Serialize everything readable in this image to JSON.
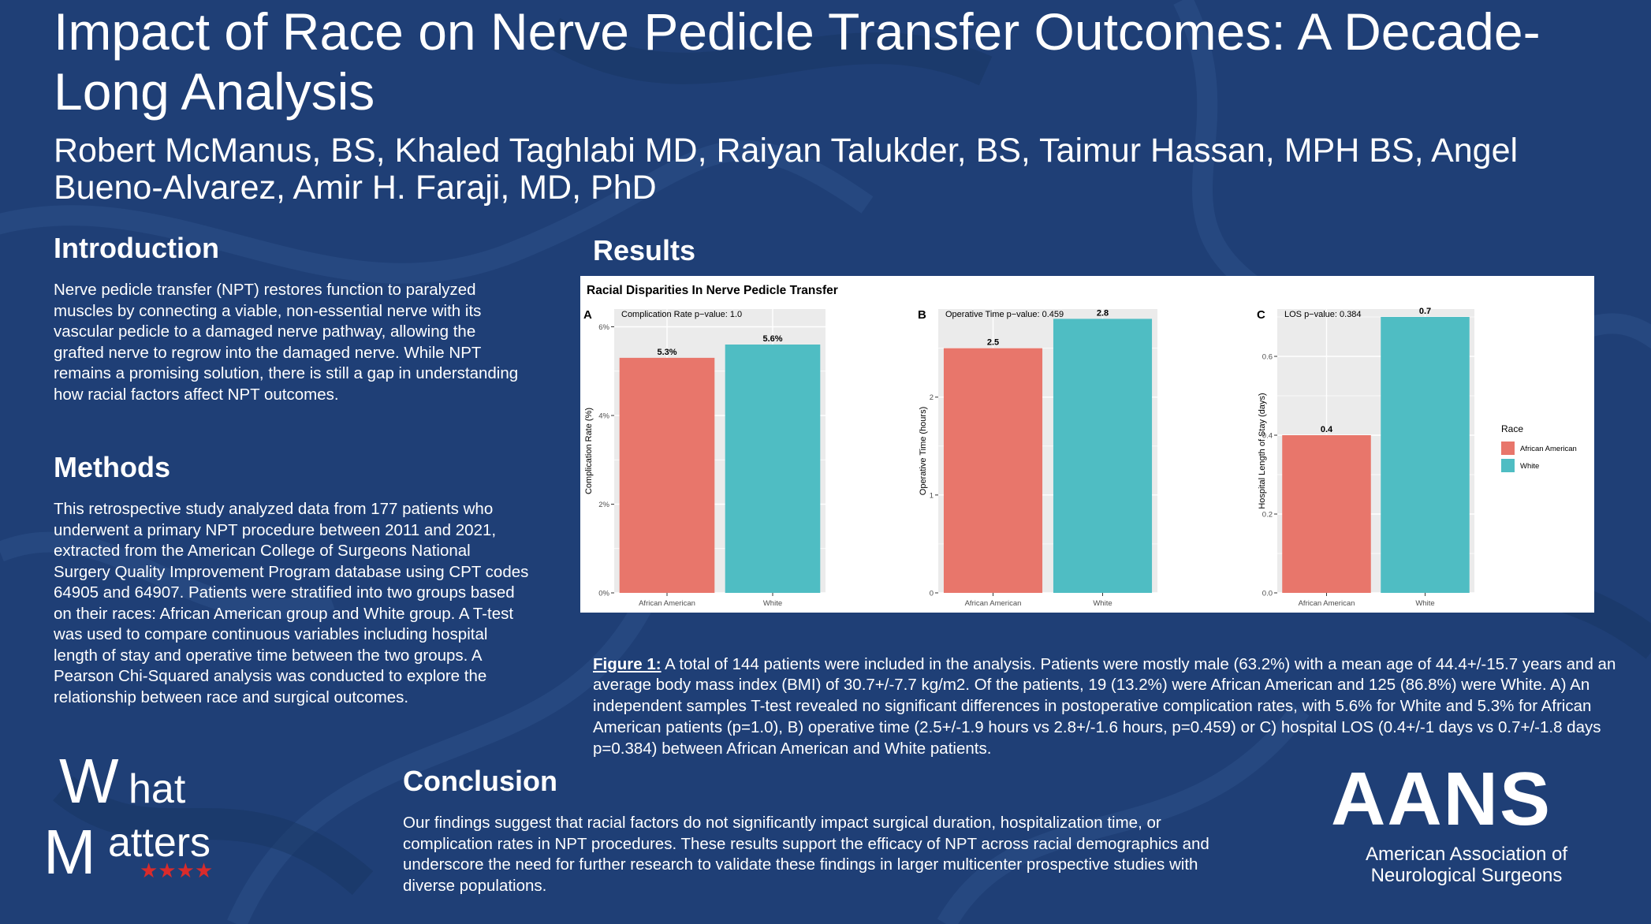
{
  "title": "Impact of Race on Nerve Pedicle Transfer Outcomes: A Decade-Long Analysis",
  "authors": "Robert McManus, BS, Khaled Taghlabi MD, Raiyan Talukder, BS, Taimur Hassan, MPH BS, Angel Bueno-Alvarez, Amir H. Faraji, MD, PhD",
  "introduction": {
    "heading": "Introduction",
    "text": "Nerve pedicle transfer (NPT) restores function to paralyzed muscles by connecting a viable, non-essential nerve with its vascular pedicle to a damaged nerve pathway, allowing the grafted nerve to regrow into the damaged nerve. While NPT remains a promising solution, there is still a gap in understanding how racial factors affect NPT outcomes."
  },
  "methods": {
    "heading": "Methods",
    "text": "This retrospective study analyzed data from 177 patients who underwent a primary NPT procedure between 2011 and 2021, extracted from the American College of Surgeons National Surgery Quality Improvement Program database using CPT codes 64905 and 64907. Patients were stratified into two groups based on their races: African American group and White group. A T-test was used to compare continuous variables including hospital length of stay and operative time between the two groups. A Pearson Chi-Squared analysis was conducted to explore the relationship between race and surgical outcomes."
  },
  "results": {
    "heading": "Results"
  },
  "conclusion": {
    "heading": "Conclusion",
    "text": "Our findings suggest that racial factors do not significantly impact surgical duration, hospitalization time, or complication rates in NPT procedures. These results support the efficacy of NPT across racial demographics and underscore the need for further research to validate these findings in larger multicenter prospective studies with diverse populations."
  },
  "figure": {
    "label": "Figure 1:",
    "caption": " A total of 144 patients were included in the analysis. Patients were mostly male (63.2%) with a mean age of 44.4+/-15.7 years and an average body mass index (BMI) of 30.7+/-7.7 kg/m2. Of the patients, 19 (13.2%) were African American and 125 (86.8%) were White. A) An independent samples T-test revealed no significant differences in postoperative complication rates, with 5.6% for White and 5.3% for African American patients (p=1.0), B) operative time (2.5+/-1.9 hours vs 2.8+/-1.6 hours, p=0.459) or C) hospital LOS (0.4+/-1 days vs 0.7+/-1.8 days p=0.384) between African American and White patients."
  },
  "logos": {
    "what_matters": {
      "line1_big": "W",
      "line1_rest": "hat",
      "line2_big": "M",
      "line2_rest": "atters",
      "stars": "★★★★"
    },
    "aans": {
      "wordmark": "AANS",
      "line1": "American Association of",
      "line2": "Neurological Surgeons"
    }
  },
  "colors": {
    "african_american": "#E8766B",
    "white": "#4FBDC3",
    "background": "#1f3f76",
    "panel_bg": "#EBEBEB"
  },
  "chart_data": {
    "title": "Racial Disparities In Nerve Pedicle Transfer",
    "type": "bar",
    "legend": {
      "title": "Race",
      "entries": [
        "African American",
        "White"
      ],
      "position": "right"
    },
    "panels": [
      {
        "panel": "A",
        "subtitle": "Complication Rate p−value: 1.0",
        "ylabel": "Complication Rate (%)",
        "categories": [
          "African American",
          "White"
        ],
        "values": [
          5.3,
          5.6
        ],
        "value_labels": [
          "5.3%",
          "5.6%"
        ],
        "yticks": [
          0,
          2,
          4,
          6
        ],
        "ytick_labels": [
          "0%",
          "2%",
          "4%",
          "6%"
        ],
        "ylim": [
          0,
          6.4
        ]
      },
      {
        "panel": "B",
        "subtitle": "Operative Time p−value: 0.459",
        "ylabel": "Operative Time (hours)",
        "categories": [
          "African American",
          "White"
        ],
        "values": [
          2.5,
          2.8
        ],
        "value_labels": [
          "2.5",
          "2.8"
        ],
        "yticks": [
          0,
          1,
          2
        ],
        "ytick_labels": [
          "0",
          "1",
          "2"
        ],
        "ylim": [
          0,
          2.9
        ]
      },
      {
        "panel": "C",
        "subtitle": "LOS p−value: 0.384",
        "ylabel": "Hospital Length of Stay (days)",
        "categories": [
          "African American",
          "White"
        ],
        "values": [
          0.4,
          0.7
        ],
        "value_labels": [
          "0.4",
          "0.7"
        ],
        "yticks": [
          0,
          0.2,
          0.4,
          0.6
        ],
        "ytick_labels": [
          "0.0",
          "0.2",
          "0.4",
          "0.6"
        ],
        "ylim": [
          0,
          0.72
        ]
      }
    ]
  }
}
